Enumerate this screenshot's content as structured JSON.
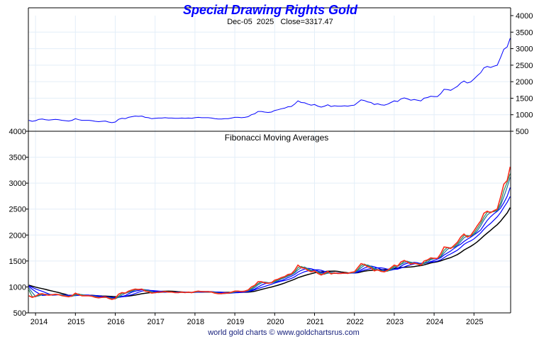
{
  "chart_data": [
    {
      "type": "line",
      "title": "Special Drawing Rights Gold",
      "subtitle": "Dec-05  2025   Close=3317.47",
      "ylim": [
        500,
        4000
      ],
      "yticks": [
        500,
        1000,
        1500,
        2000,
        2500,
        3000,
        3500,
        4000
      ],
      "yaxis_side": "right",
      "start": [
        2013,
        11
      ],
      "series": [
        {
          "name": "SDR Gold",
          "color": "#0000ff"
        }
      ],
      "grid": true
    },
    {
      "type": "line",
      "title": "Fibonacci Moving Averages",
      "ylim": [
        500,
        4000
      ],
      "yticks": [
        500,
        1000,
        1500,
        2000,
        2500,
        3000,
        3500,
        4000
      ],
      "yaxis_side": "left",
      "xticks": [
        "2014",
        "2015",
        "2016",
        "2017",
        "2018",
        "2019",
        "2020",
        "2021",
        "2022",
        "2023",
        "2024",
        "2025"
      ],
      "ma_periods_months": [
        13,
        8,
        5,
        3,
        2
      ],
      "ma_colors": [
        "#000000",
        "#0000ff",
        "#0000ff",
        "#1f6fa0",
        "#2e8b57"
      ],
      "price_color": "#ff2a1a",
      "grid": true
    }
  ],
  "prices": [
    830,
    800,
    820,
    860,
    870,
    850,
    840,
    850,
    860,
    850,
    830,
    820,
    810,
    830,
    880,
    850,
    830,
    830,
    830,
    820,
    800,
    790,
    800,
    810,
    780,
    760,
    780,
    860,
    890,
    880,
    920,
    940,
    960,
    950,
    960,
    920,
    910,
    880,
    890,
    900,
    900,
    910,
    900,
    900,
    890,
    890,
    900,
    890,
    900,
    890,
    910,
    920,
    910,
    910,
    910,
    900,
    880,
    870,
    870,
    880,
    880,
    900,
    920,
    920,
    910,
    920,
    940,
    1000,
    1030,
    1100,
    1100,
    1080,
    1070,
    1080,
    1130,
    1150,
    1180,
    1200,
    1240,
    1250,
    1320,
    1420,
    1370,
    1360,
    1320,
    1290,
    1310,
    1260,
    1230,
    1260,
    1300,
    1250,
    1270,
    1260,
    1260,
    1270,
    1260,
    1280,
    1290,
    1370,
    1450,
    1430,
    1390,
    1370,
    1310,
    1330,
    1300,
    1290,
    1320,
    1370,
    1420,
    1400,
    1480,
    1510,
    1480,
    1440,
    1460,
    1440,
    1420,
    1500,
    1520,
    1560,
    1550,
    1550,
    1640,
    1770,
    1760,
    1740,
    1800,
    1860,
    1960,
    2020,
    1960,
    1990,
    2080,
    2180,
    2270,
    2420,
    2460,
    2430,
    2470,
    2500,
    2730,
    2980,
    3050,
    3317
  ],
  "footer": "world gold charts © www.goldchartsrus.com"
}
